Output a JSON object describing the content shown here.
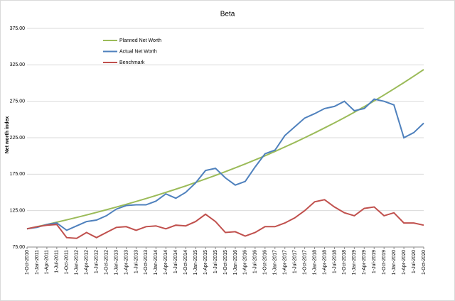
{
  "chart_data": {
    "type": "line",
    "title": "Beta",
    "y_label": "Net worth index",
    "categories": [
      "1-Oct-2010",
      "1-Jan-2011",
      "1-Apr-2011",
      "1-Jul-2011",
      "1-Oct-2011",
      "1-Jan-2012",
      "1-Apr-2012",
      "1-Jul-2012",
      "1-Oct-2012",
      "1-Jan-2013",
      "1-Apr-2013",
      "1-Jul-2013",
      "1-Oct-2013",
      "1-Jan-2014",
      "1-Apr-2014",
      "1-Jul-2014",
      "1-Oct-2014",
      "1-Jan-2015",
      "1-Apr-2015",
      "1-Jul-2015",
      "1-Oct-2015",
      "1-Jan-2016",
      "1-Apr-2016",
      "1-Jul-2016",
      "1-Oct-2016",
      "1-Jan-2017",
      "1-Apr-2017",
      "1-Jul-2017",
      "1-Oct-2017",
      "1-Jan-2018",
      "1-Apr-2018",
      "1-Jul-2018",
      "1-Oct-2018",
      "1-Jan-2019",
      "1-Apr-2019",
      "1-Jul-2019",
      "1-Oct-2019",
      "1-Jan-2020",
      "1-Apr-2020",
      "1-Jul-2020",
      "1-Oct-2020"
    ],
    "series": [
      {
        "name": "Planned Net Worth",
        "color": "#9bbb59",
        "values": [
          100,
          102.9,
          106.0,
          109.1,
          112.3,
          115.6,
          119.0,
          122.5,
          126.1,
          129.8,
          133.6,
          137.5,
          141.5,
          145.7,
          150.0,
          154.4,
          158.9,
          163.6,
          168.4,
          173.3,
          178.4,
          183.7,
          189.1,
          194.6,
          200.3,
          206.2,
          212.3,
          218.5,
          225.0,
          231.6,
          238.4,
          245.4,
          252.6,
          260.0,
          267.7,
          275.5,
          283.6,
          292.0,
          300.6,
          309.4,
          318.5
        ]
      },
      {
        "name": "Actual Net Worth",
        "color": "#4f81bd",
        "values": [
          100,
          102,
          106,
          108,
          98,
          104,
          110,
          112,
          118,
          127,
          132,
          133,
          133,
          138,
          148,
          142,
          150,
          163,
          180,
          183,
          170,
          160,
          165,
          185,
          203,
          208,
          228,
          240,
          252,
          258,
          265,
          268,
          275,
          262,
          265,
          278,
          275,
          270,
          225,
          232,
          245
        ]
      },
      {
        "name": "Benchmark",
        "color": "#c0504d",
        "values": [
          100,
          103,
          105,
          106,
          88,
          87,
          95,
          88,
          95,
          102,
          103,
          98,
          103,
          104,
          100,
          105,
          104,
          110,
          120,
          110,
          95,
          96,
          90,
          95,
          103,
          103,
          108,
          115,
          125,
          137,
          140,
          130,
          122,
          118,
          128,
          130,
          118,
          122,
          108,
          108,
          105
        ]
      }
    ],
    "ylim": [
      75,
      375
    ],
    "yticks": [
      {
        "value": 75,
        "label": "75.00"
      },
      {
        "value": 125,
        "label": "125.00"
      },
      {
        "value": 175,
        "label": "175.00"
      },
      {
        "value": 225,
        "label": "225.00"
      },
      {
        "value": 275,
        "label": "275.00"
      },
      {
        "value": 325,
        "label": "325.00"
      },
      {
        "value": 375,
        "label": "375.00"
      }
    ],
    "grid": true,
    "legend": "upper left"
  }
}
